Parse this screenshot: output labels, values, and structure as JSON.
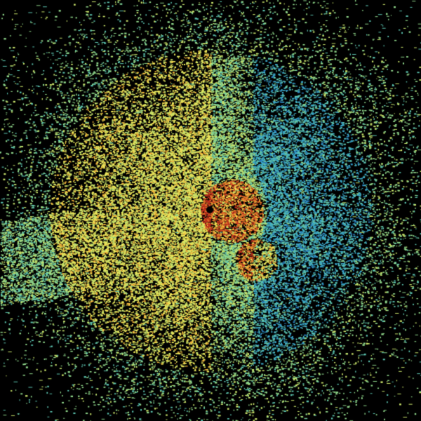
{
  "image": {
    "kind": "radar-reflectivity-ppi",
    "background": "#000000",
    "colormap": [
      "#1f4fa8",
      "#2a7fc0",
      "#3aa6c8",
      "#5cc4b0",
      "#8fd68a",
      "#c8e36a",
      "#efe85a",
      "#f2b33a",
      "#e0702a",
      "#c0301e"
    ],
    "radar_site_color": "#000000"
  }
}
